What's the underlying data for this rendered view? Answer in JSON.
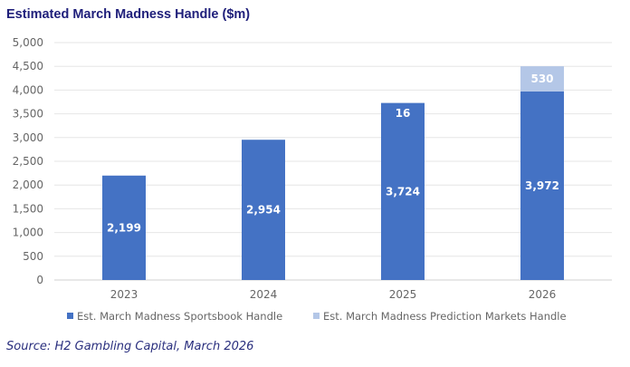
{
  "chart_data": {
    "type": "bar",
    "stacked": true,
    "title": "Estimated March Madness Handle ($m)",
    "xlabel": "",
    "ylabel": "",
    "categories": [
      "2023",
      "2024",
      "2025",
      "2026"
    ],
    "series": [
      {
        "name": "Est. March Madness Sportsbook Handle",
        "values": [
          2199,
          2954,
          3724,
          3972
        ],
        "labels": [
          "2,199",
          "2,954",
          "3,724",
          "3,972"
        ],
        "color": "#4472c4"
      },
      {
        "name": "Est. March Madness Prediction Markets Handle",
        "values": [
          0,
          0,
          16,
          530
        ],
        "labels": [
          "",
          "",
          "16",
          "530"
        ],
        "color": "#b4c7e7"
      }
    ],
    "ylim": [
      0,
      5000
    ],
    "yticks": [
      "0",
      "500",
      "1,000",
      "1,500",
      "2,000",
      "2,500",
      "3,000",
      "3,500",
      "4,000",
      "4,500",
      "5,000"
    ],
    "grid": true,
    "legend": "bottom"
  },
  "source": "Source: H2 Gambling Capital, March 2026"
}
